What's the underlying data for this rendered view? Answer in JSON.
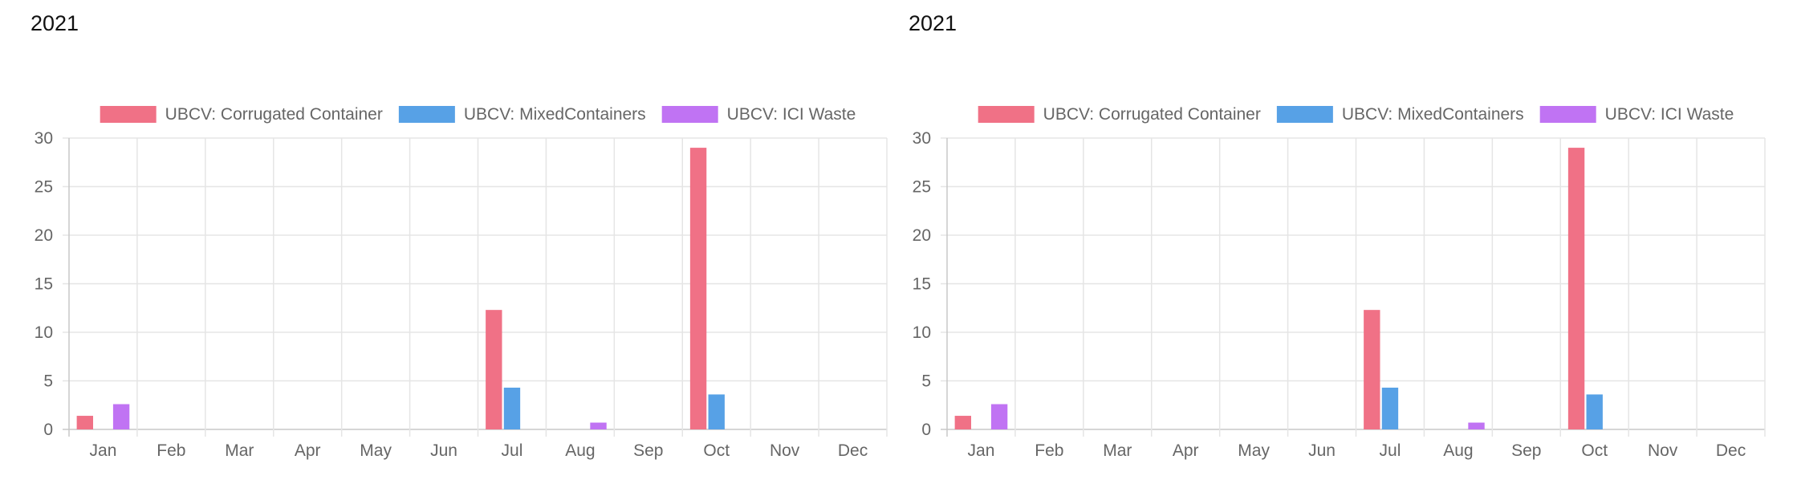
{
  "charts": [
    {
      "title": "2021",
      "chart_data": {
        "type": "bar",
        "categories": [
          "Jan",
          "Feb",
          "Mar",
          "Apr",
          "May",
          "Jun",
          "Jul",
          "Aug",
          "Sep",
          "Oct",
          "Nov",
          "Dec"
        ],
        "series": [
          {
            "name": "UBCV: Corrugated Container",
            "color": "#f07186",
            "values": [
              1.4,
              0,
              0,
              0,
              0,
              0,
              12.3,
              0,
              0,
              29,
              0,
              0
            ]
          },
          {
            "name": "UBCV: MixedContainers",
            "color": "#57a1e6",
            "values": [
              0,
              0,
              0,
              0,
              0,
              0,
              4.3,
              0,
              0,
              3.6,
              0,
              0
            ]
          },
          {
            "name": "UBCV: ICI Waste",
            "color": "#c073f3",
            "values": [
              2.6,
              0,
              0,
              0,
              0,
              0,
              0,
              0.7,
              0,
              0,
              0,
              0
            ]
          }
        ],
        "ylim": [
          0,
          30
        ],
        "yticks": [
          0,
          5,
          10,
          15,
          20,
          25,
          30
        ],
        "grid": true,
        "legend": "top"
      }
    },
    {
      "title": "2021",
      "chart_data": {
        "type": "bar",
        "categories": [
          "Jan",
          "Feb",
          "Mar",
          "Apr",
          "May",
          "Jun",
          "Jul",
          "Aug",
          "Sep",
          "Oct",
          "Nov",
          "Dec"
        ],
        "series": [
          {
            "name": "UBCV: Corrugated Container",
            "color": "#f07186",
            "values": [
              1.4,
              0,
              0,
              0,
              0,
              0,
              12.3,
              0,
              0,
              29,
              0,
              0
            ]
          },
          {
            "name": "UBCV: MixedContainers",
            "color": "#57a1e6",
            "values": [
              0,
              0,
              0,
              0,
              0,
              0,
              4.3,
              0,
              0,
              3.6,
              0,
              0
            ]
          },
          {
            "name": "UBCV: ICI Waste",
            "color": "#c073f3",
            "values": [
              2.6,
              0,
              0,
              0,
              0,
              0,
              0,
              0.7,
              0,
              0,
              0,
              0
            ]
          }
        ],
        "ylim": [
          0,
          30
        ],
        "yticks": [
          0,
          5,
          10,
          15,
          20,
          25,
          30
        ],
        "grid": true,
        "legend": "top"
      }
    }
  ]
}
